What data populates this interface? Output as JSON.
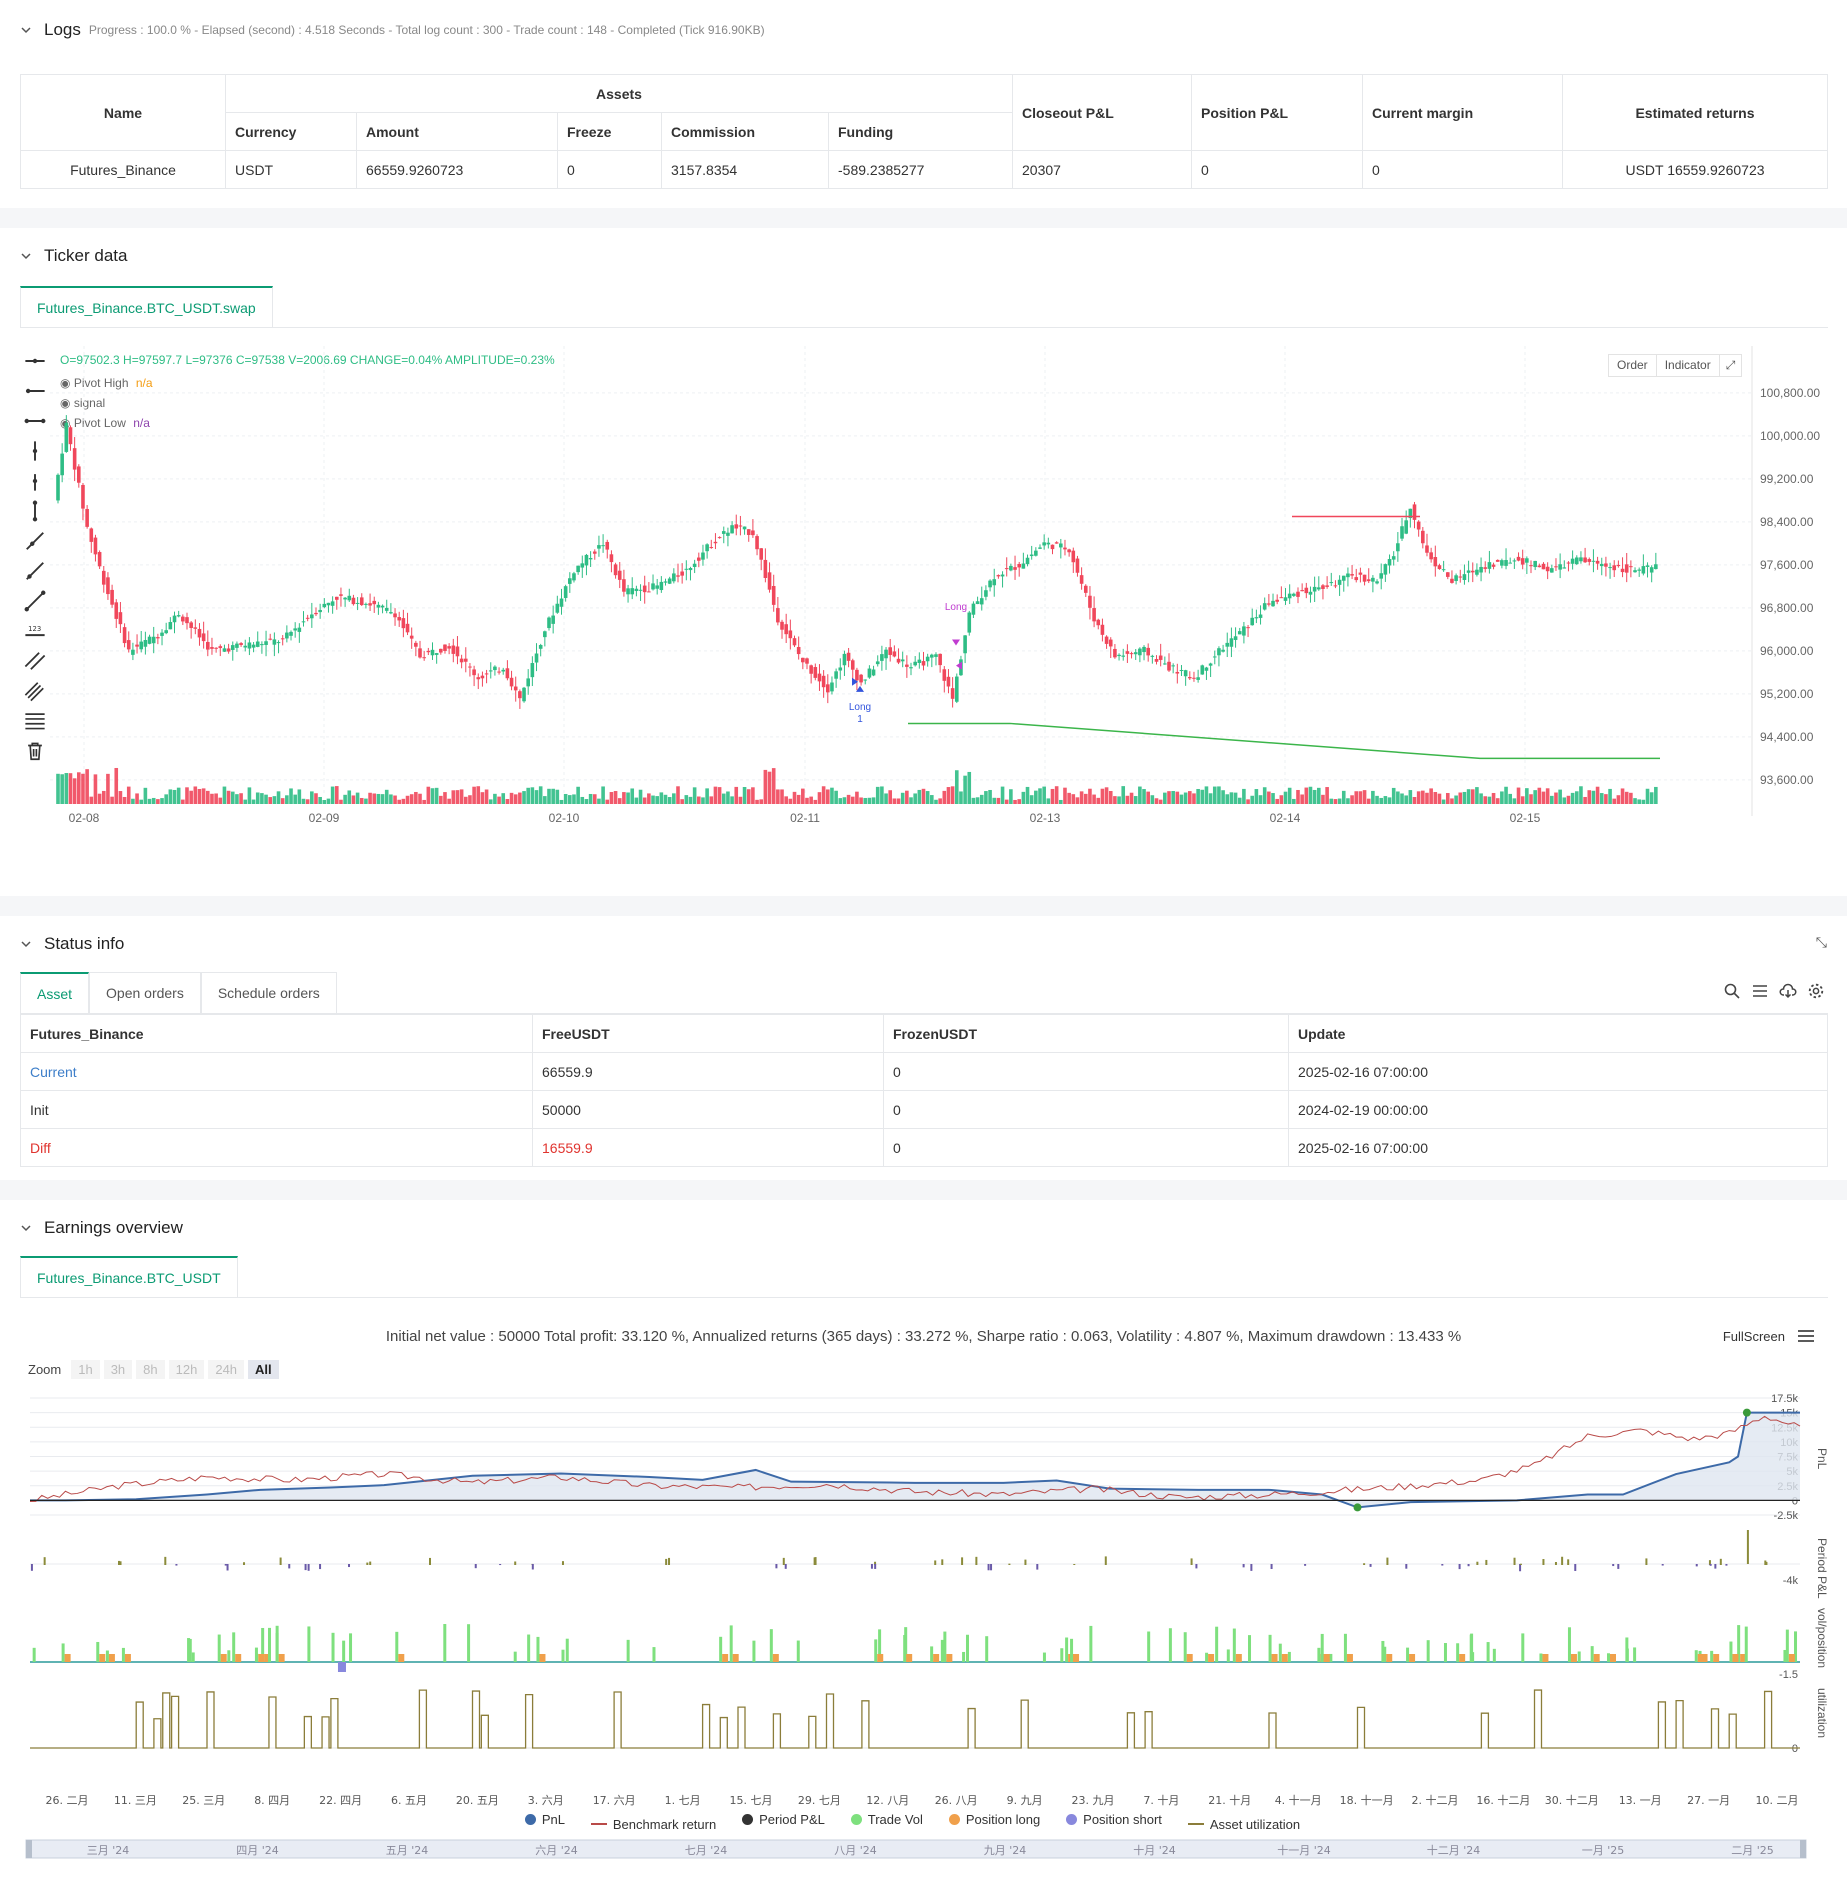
{
  "logs": {
    "title": "Logs",
    "summary": "Progress : 100.0 % - Elapsed (second) : 4.518  Seconds - Total log count : 300 - Trade count : 148 - Completed (Tick 916.90KB)",
    "table": {
      "name_header": "Name",
      "assets_header": "Assets",
      "currency_header": "Currency",
      "amount_header": "Amount",
      "freeze_header": "Freeze",
      "commission_header": "Commission",
      "funding_header": "Funding",
      "closeout_header": "Closeout P&L",
      "position_header": "Position P&L",
      "margin_header": "Current margin",
      "returns_header": "Estimated returns",
      "row": {
        "name": "Futures_Binance",
        "currency": "USDT",
        "amount": "66559.9260723",
        "freeze": "0",
        "commission": "3157.8354",
        "funding": "-589.2385277",
        "closeout": "20307",
        "position": "0",
        "margin": "0",
        "returns": "USDT 16559.9260723"
      }
    }
  },
  "ticker": {
    "title": "Ticker data",
    "tab": "Futures_Binance.BTC_USDT.swap",
    "ohlc": "O=97502.3 H=97597.7 L=97376 C=97538 V=2006.69 CHANGE=0.04% AMPLITUDE=0.23%",
    "legend": [
      {
        "label": "Pivot High",
        "value": "n/a",
        "color": "#f39c12"
      },
      {
        "label": "signal",
        "value": "",
        "color": ""
      },
      {
        "label": "Pivot Low",
        "value": "n/a",
        "color": "#8e44ad"
      }
    ],
    "order_btn": "Order",
    "indicator_btn": "Indicator",
    "y_ticks": [
      "100,800.00",
      "100,000.00",
      "99,200.00",
      "98,400.00",
      "97,600.00",
      "96,800.00",
      "96,000.00",
      "95,200.00",
      "94,400.00",
      "93,600.00"
    ],
    "x_ticks": [
      "02-08",
      "02-09",
      "02-10",
      "02-11",
      "02-13",
      "02-14",
      "02-15"
    ],
    "markers": {
      "long1": "Long",
      "long1_sub": "1",
      "long2": "Long"
    },
    "colors": {
      "up": "#2ebd85",
      "down": "#f0475b",
      "pivot_high": "#f0475b",
      "pivot_low": "#3bb54a"
    }
  },
  "status": {
    "title": "Status info",
    "tabs": [
      "Asset",
      "Open orders",
      "Schedule orders"
    ],
    "headers": [
      "Futures_Binance",
      "FreeUSDT",
      "FrozenUSDT",
      "Update"
    ],
    "rows": [
      {
        "label": "Current",
        "free": "66559.9",
        "frozen": "0",
        "update": "2025-02-16 07:00:00"
      },
      {
        "label": "Init",
        "free": "50000",
        "frozen": "0",
        "update": "2024-02-19 00:00:00"
      },
      {
        "label": "Diff",
        "free": "16559.9",
        "frozen": "0",
        "update": "2025-02-16 07:00:00"
      }
    ]
  },
  "earnings": {
    "title": "Earnings overview",
    "tab": "Futures_Binance.BTC_USDT",
    "summary": "Initial net value : 50000 Total profit: 33.120 %, Annualized returns (365 days) : 33.272 %, Sharpe ratio : 0.063, Volatility : 4.807 %, Maximum drawdown : 13.433 %",
    "fullscreen": "FullScreen",
    "zoom_label": "Zoom",
    "zoom_options": [
      "1h",
      "3h",
      "8h",
      "12h",
      "24h",
      "All"
    ],
    "pnl_ticks": [
      "17.5k",
      "15k",
      "12.5k",
      "10k",
      "7.5k",
      "5k",
      "2.5k",
      "0",
      "-2.5k"
    ],
    "pnl_axis": "PnL",
    "period_ticks": [
      "-4k"
    ],
    "period_axis": "Period P&L",
    "vol_ticks": [
      "-1.5"
    ],
    "vol_axis": "vol/position",
    "util_ticks": [
      "0"
    ],
    "util_axis": "utilization",
    "x_ticks": [
      "26. 二月",
      "11. 三月",
      "25. 三月",
      "8. 四月",
      "22. 四月",
      "6. 五月",
      "20. 五月",
      "3. 六月",
      "17. 六月",
      "1. 七月",
      "15. 七月",
      "29. 七月",
      "12. 八月",
      "26. 八月",
      "9. 九月",
      "23. 九月",
      "7. 十月",
      "21. 十月",
      "4. 十一月",
      "18. 十一月",
      "2. 十二月",
      "16. 十二月",
      "30. 十二月",
      "13. 一月",
      "27. 一月",
      "10. 二月"
    ],
    "nav_ticks": [
      "三月 '24",
      "四月 '24",
      "五月 '24",
      "六月 '24",
      "七月 '24",
      "八月 '24",
      "九月 '24",
      "十月 '24",
      "十一月 '24",
      "十二月 '24",
      "一月 '25",
      "二月 '25"
    ],
    "legend": [
      {
        "label": "PnL",
        "color": "#3d6aa8",
        "kind": "dot"
      },
      {
        "label": "Benchmark return",
        "color": "#b94a48",
        "kind": "line"
      },
      {
        "label": "Period P&L",
        "color": "#333333",
        "kind": "dot"
      },
      {
        "label": "Trade Vol",
        "color": "#7ee07e",
        "kind": "dot"
      },
      {
        "label": "Position long",
        "color": "#f0a04b",
        "kind": "dot"
      },
      {
        "label": "Position short",
        "color": "#8888dd",
        "kind": "dot"
      },
      {
        "label": "Asset utilization",
        "color": "#8b7d3a",
        "kind": "line"
      }
    ]
  }
}
